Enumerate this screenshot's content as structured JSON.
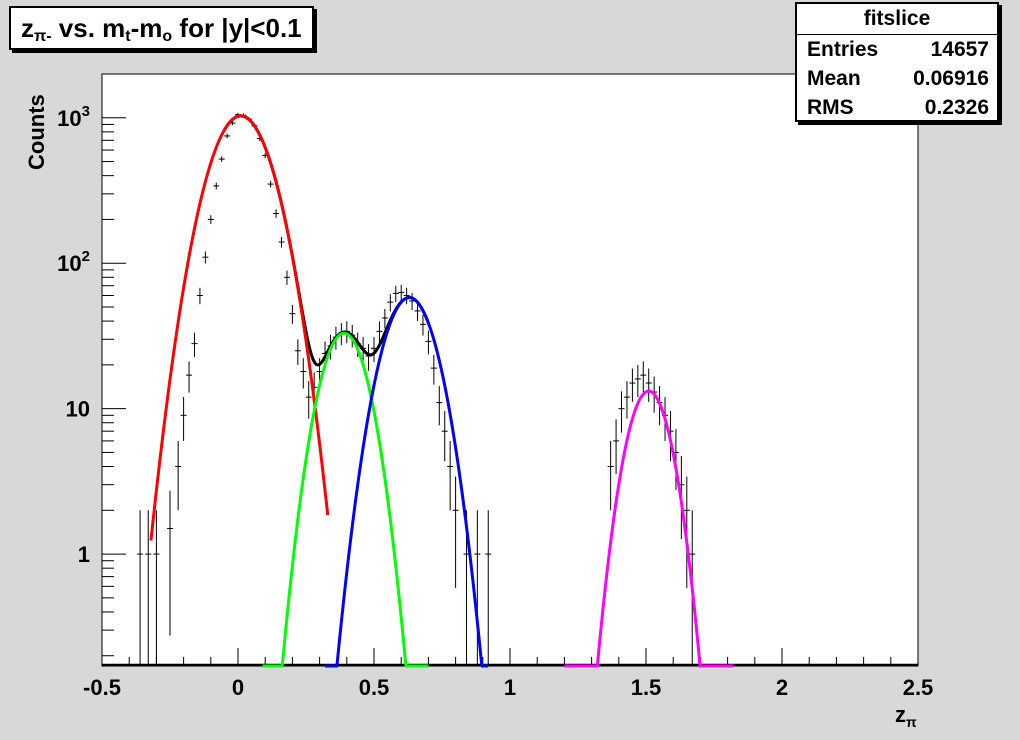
{
  "title": {
    "z": "z",
    "sub1": "π-",
    "mid": " vs. m",
    "sub2": "t",
    "dash": "-m",
    "sub3": "o",
    "tail": " for |y|<0.1"
  },
  "stats": {
    "name": "fitslice",
    "rows": [
      {
        "label": "Entries",
        "value": "14657"
      },
      {
        "label": "Mean",
        "value": "0.06916"
      },
      {
        "label": "RMS",
        "value": "0.2326"
      }
    ]
  },
  "chart_data": {
    "type": "scatter",
    "xlabel": "z",
    "xlabel_sub": "π",
    "ylabel": "Counts",
    "xlim": [
      -0.5,
      2.5
    ],
    "ylim": [
      0.17,
      2000
    ],
    "yscale": "log",
    "x_ticks": [
      {
        "v": -0.5,
        "label": "-0.5"
      },
      {
        "v": 0,
        "label": "0"
      },
      {
        "v": 0.5,
        "label": "0.5"
      },
      {
        "v": 1,
        "label": "1"
      },
      {
        "v": 1.5,
        "label": "1.5"
      },
      {
        "v": 2,
        "label": "2"
      },
      {
        "v": 2.5,
        "label": "2.5"
      }
    ],
    "y_ticks": [
      {
        "v": 1,
        "base": "1",
        "exp": ""
      },
      {
        "v": 10,
        "base": "10",
        "exp": ""
      },
      {
        "v": 100,
        "base": "10",
        "exp": "2"
      },
      {
        "v": 1000,
        "base": "10",
        "exp": "3"
      }
    ],
    "fits": [
      {
        "name": "fit-red",
        "color": "#ff0000",
        "amp": 1030,
        "mean": 0.01,
        "sigma": 0.09,
        "xmin": -0.32,
        "xmax": 0.33
      },
      {
        "name": "fit-green",
        "color": "#00ff00",
        "amp": 33,
        "mean": 0.39,
        "sigma": 0.07,
        "xmin": 0.09,
        "xmax": 0.7
      },
      {
        "name": "fit-blue",
        "color": "#0000ff",
        "amp": 58,
        "mean": 0.63,
        "sigma": 0.078,
        "xmin": 0.32,
        "xmax": 0.92
      },
      {
        "name": "fit-magenta",
        "color": "#ff00ff",
        "amp": 13.2,
        "mean": 1.51,
        "sigma": 0.064,
        "xmin": 1.2,
        "xmax": 1.82
      }
    ],
    "total_fit": {
      "color": "#000000",
      "xmin": -0.05,
      "xmax": 0.7
    },
    "points": [
      [
        -0.36,
        1
      ],
      [
        -0.33,
        1
      ],
      [
        -0.3,
        1
      ],
      [
        -0.25,
        1.5
      ],
      [
        -0.22,
        4
      ],
      [
        -0.2,
        9
      ],
      [
        -0.18,
        17
      ],
      [
        -0.16,
        28
      ],
      [
        -0.14,
        60
      ],
      [
        -0.12,
        110
      ],
      [
        -0.1,
        200
      ],
      [
        -0.08,
        340
      ],
      [
        -0.06,
        520
      ],
      [
        -0.04,
        750
      ],
      [
        -0.02,
        920
      ],
      [
        0.0,
        1050
      ],
      [
        0.02,
        1040
      ],
      [
        0.04,
        980
      ],
      [
        0.06,
        880
      ],
      [
        0.08,
        720
      ],
      [
        0.1,
        550
      ],
      [
        0.12,
        350
      ],
      [
        0.14,
        220
      ],
      [
        0.16,
        140
      ],
      [
        0.18,
        80
      ],
      [
        0.2,
        45
      ],
      [
        0.22,
        25
      ],
      [
        0.24,
        18
      ],
      [
        0.26,
        12
      ],
      [
        0.28,
        14
      ],
      [
        0.3,
        18
      ],
      [
        0.32,
        24
      ],
      [
        0.34,
        27
      ],
      [
        0.36,
        31
      ],
      [
        0.38,
        33
      ],
      [
        0.4,
        34
      ],
      [
        0.42,
        32
      ],
      [
        0.44,
        28
      ],
      [
        0.46,
        26
      ],
      [
        0.48,
        23
      ],
      [
        0.5,
        26
      ],
      [
        0.52,
        34
      ],
      [
        0.54,
        42
      ],
      [
        0.56,
        54
      ],
      [
        0.58,
        62
      ],
      [
        0.6,
        63
      ],
      [
        0.62,
        60
      ],
      [
        0.64,
        55
      ],
      [
        0.66,
        47
      ],
      [
        0.68,
        38
      ],
      [
        0.7,
        29
      ],
      [
        0.72,
        19
      ],
      [
        0.74,
        11
      ],
      [
        0.76,
        7
      ],
      [
        0.78,
        4
      ],
      [
        0.8,
        2
      ],
      [
        0.84,
        1
      ],
      [
        0.88,
        1
      ],
      [
        0.92,
        1
      ],
      [
        1.37,
        4
      ],
      [
        1.39,
        6
      ],
      [
        1.41,
        10
      ],
      [
        1.43,
        12
      ],
      [
        1.45,
        15
      ],
      [
        1.47,
        16
      ],
      [
        1.49,
        17
      ],
      [
        1.51,
        15
      ],
      [
        1.53,
        13
      ],
      [
        1.55,
        11
      ],
      [
        1.57,
        9
      ],
      [
        1.59,
        7
      ],
      [
        1.61,
        5
      ],
      [
        1.63,
        3
      ],
      [
        1.65,
        2
      ],
      [
        1.67,
        1
      ]
    ]
  }
}
